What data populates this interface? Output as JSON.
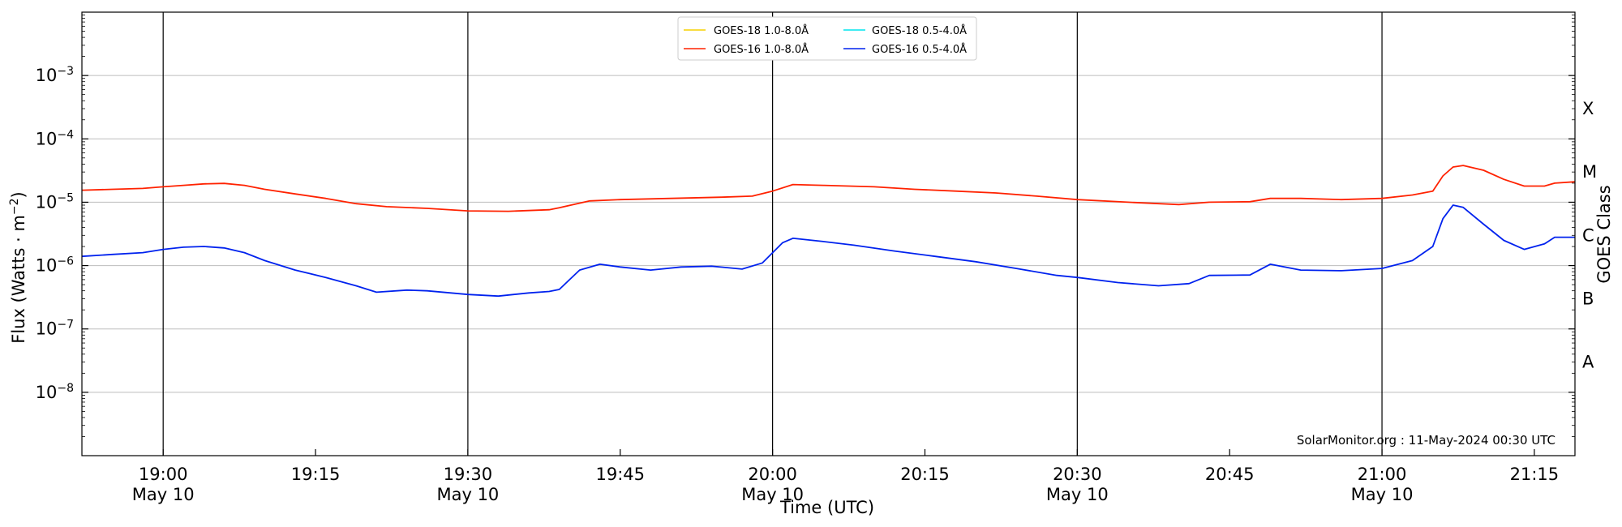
{
  "chart_data": {
    "type": "line",
    "xlabel": "Time (UTC)",
    "ylabel": "Flux (Watts · m",
    "ylabel_exponent": "−2",
    "ylabel_close": ")",
    "y2label": "GOES Class",
    "yscale": "log",
    "ylim": [
      1e-09,
      0.01
    ],
    "xlim": [
      "18:52",
      "21:19"
    ],
    "grid": "horizontal",
    "legend_placement": "top-center",
    "credit": "SolarMonitor.org : 11-May-2024 00:30 UTC",
    "y_ticks": [
      {
        "value": 1e-08,
        "base": "10",
        "exp": "−8"
      },
      {
        "value": 1e-07,
        "base": "10",
        "exp": "−7"
      },
      {
        "value": 1e-06,
        "base": "10",
        "exp": "−6"
      },
      {
        "value": 1e-05,
        "base": "10",
        "exp": "−5"
      },
      {
        "value": 0.0001,
        "base": "10",
        "exp": "−4"
      },
      {
        "value": 0.001,
        "base": "10",
        "exp": "−3"
      }
    ],
    "class_labels": [
      {
        "label": "A",
        "value": 3e-08
      },
      {
        "label": "B",
        "value": 3e-07
      },
      {
        "label": "C",
        "value": 3e-06
      },
      {
        "label": "M",
        "value": 3e-05
      },
      {
        "label": "X",
        "value": 0.0003
      }
    ],
    "x_ticks": [
      {
        "time": "19:00",
        "label": "19:00",
        "date": "May 10",
        "major": true
      },
      {
        "time": "19:15",
        "label": "19:15",
        "date": "",
        "major": false
      },
      {
        "time": "19:30",
        "label": "19:30",
        "date": "May 10",
        "major": true
      },
      {
        "time": "19:45",
        "label": "19:45",
        "date": "",
        "major": false
      },
      {
        "time": "20:00",
        "label": "20:00",
        "date": "May 10",
        "major": true
      },
      {
        "time": "20:15",
        "label": "20:15",
        "date": "",
        "major": false
      },
      {
        "time": "20:30",
        "label": "20:30",
        "date": "May 10",
        "major": true
      },
      {
        "time": "20:45",
        "label": "20:45",
        "date": "",
        "major": false
      },
      {
        "time": "21:00",
        "label": "21:00",
        "date": "May 10",
        "major": true
      },
      {
        "time": "21:15",
        "label": "21:15",
        "date": "",
        "major": false
      }
    ],
    "legend": [
      {
        "name": "GOES-18 1.0-8.0Å",
        "color": "#f5d000"
      },
      {
        "name": "GOES-18 0.5-4.0Å",
        "color": "#00e5ee"
      },
      {
        "name": "GOES-16 1.0-8.0Å",
        "color": "#ff2200"
      },
      {
        "name": "GOES-16 0.5-4.0Å",
        "color": "#0022ee"
      }
    ],
    "series": [
      {
        "name": "GOES-16 1.0-8.0Å",
        "color": "#ff2200",
        "x": [
          "18:52",
          "18:55",
          "18:58",
          "19:00",
          "19:02",
          "19:04",
          "19:06",
          "19:08",
          "19:10",
          "19:13",
          "19:16",
          "19:19",
          "19:22",
          "19:26",
          "19:30",
          "19:34",
          "19:38",
          "19:39",
          "19:42",
          "19:45",
          "19:50",
          "19:55",
          "19:58",
          "20:00",
          "20:02",
          "20:05",
          "20:10",
          "20:14",
          "20:18",
          "20:22",
          "20:26",
          "20:30",
          "20:35",
          "20:40",
          "20:43",
          "20:47",
          "20:49",
          "20:52",
          "20:56",
          "21:00",
          "21:03",
          "21:05",
          "21:06",
          "21:07",
          "21:08",
          "21:10",
          "21:12",
          "21:14",
          "21:16",
          "21:17",
          "21:19"
        ],
        "values": [
          1.55e-05,
          1.6e-05,
          1.65e-05,
          1.75e-05,
          1.85e-05,
          1.95e-05,
          1.98e-05,
          1.85e-05,
          1.6e-05,
          1.35e-05,
          1.15e-05,
          9.5e-06,
          8.5e-06,
          8e-06,
          7.3e-06,
          7.2e-06,
          7.6e-06,
          8.2e-06,
          1.05e-05,
          1.1e-05,
          1.15e-05,
          1.2e-05,
          1.25e-05,
          1.5e-05,
          1.9e-05,
          1.85e-05,
          1.75e-05,
          1.6e-05,
          1.5e-05,
          1.4e-05,
          1.25e-05,
          1.1e-05,
          1e-05,
          9.2e-06,
          1e-05,
          1.02e-05,
          1.15e-05,
          1.15e-05,
          1.1e-05,
          1.15e-05,
          1.3e-05,
          1.5e-05,
          2.6e-05,
          3.6e-05,
          3.8e-05,
          3.2e-05,
          2.3e-05,
          1.8e-05,
          1.8e-05,
          2e-05,
          2.1e-05
        ]
      },
      {
        "name": "GOES-16 0.5-4.0Å",
        "color": "#0022ee",
        "x": [
          "18:52",
          "18:55",
          "18:58",
          "19:00",
          "19:02",
          "19:04",
          "19:06",
          "19:08",
          "19:10",
          "19:13",
          "19:16",
          "19:19",
          "19:21",
          "19:24",
          "19:26",
          "19:30",
          "19:33",
          "19:36",
          "19:38",
          "19:39",
          "19:41",
          "19:43",
          "19:45",
          "19:48",
          "19:51",
          "19:54",
          "19:57",
          "19:59",
          "20:01",
          "20:02",
          "20:05",
          "20:08",
          "20:12",
          "20:16",
          "20:20",
          "20:24",
          "20:28",
          "20:30",
          "20:34",
          "20:38",
          "20:41",
          "20:43",
          "20:47",
          "20:49",
          "20:52",
          "20:56",
          "21:00",
          "21:03",
          "21:05",
          "21:06",
          "21:07",
          "21:08",
          "21:10",
          "21:12",
          "21:14",
          "21:16",
          "21:17",
          "21:19"
        ],
        "values": [
          1.4e-06,
          1.5e-06,
          1.6e-06,
          1.8e-06,
          1.95e-06,
          2e-06,
          1.9e-06,
          1.6e-06,
          1.2e-06,
          8.5e-07,
          6.5e-07,
          4.8e-07,
          3.8e-07,
          4.1e-07,
          4e-07,
          3.5e-07,
          3.3e-07,
          3.7e-07,
          3.9e-07,
          4.2e-07,
          8.5e-07,
          1.05e-06,
          9.5e-07,
          8.5e-07,
          9.5e-07,
          9.8e-07,
          8.8e-07,
          1.1e-06,
          2.3e-06,
          2.7e-06,
          2.4e-06,
          2.1e-06,
          1.7e-06,
          1.4e-06,
          1.15e-06,
          9e-07,
          7e-07,
          6.5e-07,
          5.4e-07,
          4.8e-07,
          5.2e-07,
          7e-07,
          7.1e-07,
          1.05e-06,
          8.5e-07,
          8.3e-07,
          9e-07,
          1.2e-06,
          2e-06,
          5.5e-06,
          9e-06,
          8.3e-06,
          4.5e-06,
          2.5e-06,
          1.8e-06,
          2.2e-06,
          2.8e-06,
          2.8e-06
        ]
      }
    ]
  }
}
